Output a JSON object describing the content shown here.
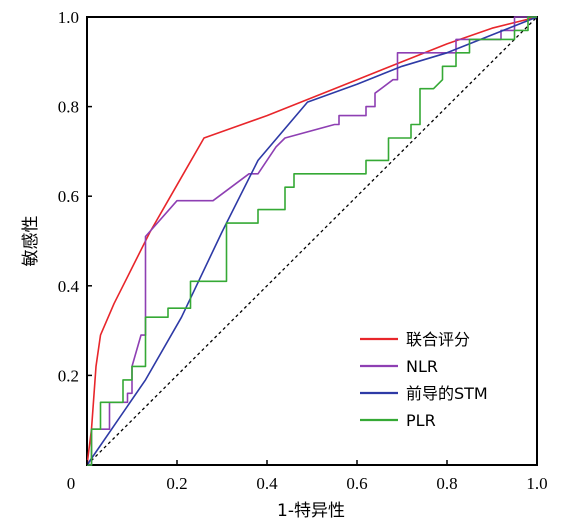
{
  "chart_data": {
    "type": "line",
    "title": "",
    "xlabel": "1-特异性",
    "ylabel": "敏感性",
    "xlim": [
      0,
      1
    ],
    "ylim": [
      0,
      1
    ],
    "x_ticks": [
      "0",
      "0.2",
      "0.4",
      "0.6",
      "0.8",
      "1.0"
    ],
    "y_ticks": [
      "0.2",
      "0.4",
      "0.6",
      "0.8",
      "1.0"
    ],
    "grid": false,
    "legend_position": "bottom-right",
    "reference_line": {
      "style": "dashed",
      "color": "#000000",
      "points": [
        [
          0,
          0
        ],
        [
          1,
          1
        ]
      ]
    },
    "series": [
      {
        "name": "联合评分",
        "color": "#e8262b",
        "points": [
          [
            0,
            0
          ],
          [
            0.01,
            0.08
          ],
          [
            0.02,
            0.22
          ],
          [
            0.03,
            0.29
          ],
          [
            0.06,
            0.36
          ],
          [
            0.1,
            0.44
          ],
          [
            0.14,
            0.52
          ],
          [
            0.18,
            0.59
          ],
          [
            0.22,
            0.66
          ],
          [
            0.26,
            0.73
          ],
          [
            0.4,
            0.78
          ],
          [
            0.55,
            0.84
          ],
          [
            0.7,
            0.9
          ],
          [
            0.8,
            0.94
          ],
          [
            0.9,
            0.975
          ],
          [
            1,
            1
          ]
        ]
      },
      {
        "name": "NLR",
        "color": "#8e3fb3",
        "points": [
          [
            0,
            0
          ],
          [
            0.01,
            0
          ],
          [
            0.01,
            0.08
          ],
          [
            0.05,
            0.08
          ],
          [
            0.05,
            0.14
          ],
          [
            0.09,
            0.14
          ],
          [
            0.09,
            0.16
          ],
          [
            0.1,
            0.16
          ],
          [
            0.1,
            0.22
          ],
          [
            0.12,
            0.29
          ],
          [
            0.13,
            0.29
          ],
          [
            0.13,
            0.51
          ],
          [
            0.2,
            0.59
          ],
          [
            0.28,
            0.59
          ],
          [
            0.36,
            0.65
          ],
          [
            0.38,
            0.65
          ],
          [
            0.42,
            0.71
          ],
          [
            0.44,
            0.73
          ],
          [
            0.55,
            0.76
          ],
          [
            0.56,
            0.76
          ],
          [
            0.56,
            0.78
          ],
          [
            0.62,
            0.78
          ],
          [
            0.62,
            0.8
          ],
          [
            0.64,
            0.8
          ],
          [
            0.64,
            0.83
          ],
          [
            0.68,
            0.86
          ],
          [
            0.69,
            0.86
          ],
          [
            0.69,
            0.92
          ],
          [
            0.82,
            0.92
          ],
          [
            0.82,
            0.95
          ],
          [
            0.92,
            0.95
          ],
          [
            0.92,
            0.97
          ],
          [
            0.95,
            0.97
          ],
          [
            0.95,
            1
          ],
          [
            1,
            1
          ]
        ]
      },
      {
        "name": "前导的STM",
        "color": "#2e3aa6",
        "points": [
          [
            0,
            0
          ],
          [
            0.13,
            0.19
          ],
          [
            0.21,
            0.33
          ],
          [
            0.3,
            0.52
          ],
          [
            0.38,
            0.68
          ],
          [
            0.49,
            0.81
          ],
          [
            0.6,
            0.85
          ],
          [
            0.7,
            0.89
          ],
          [
            0.8,
            0.92
          ],
          [
            0.9,
            0.96
          ],
          [
            1,
            1
          ]
        ]
      },
      {
        "name": "PLR",
        "color": "#35a935",
        "points": [
          [
            0,
            0
          ],
          [
            0.01,
            0
          ],
          [
            0.01,
            0.08
          ],
          [
            0.03,
            0.08
          ],
          [
            0.03,
            0.14
          ],
          [
            0.08,
            0.14
          ],
          [
            0.08,
            0.19
          ],
          [
            0.1,
            0.19
          ],
          [
            0.1,
            0.22
          ],
          [
            0.13,
            0.22
          ],
          [
            0.13,
            0.33
          ],
          [
            0.18,
            0.33
          ],
          [
            0.18,
            0.35
          ],
          [
            0.23,
            0.35
          ],
          [
            0.23,
            0.41
          ],
          [
            0.31,
            0.41
          ],
          [
            0.31,
            0.54
          ],
          [
            0.38,
            0.54
          ],
          [
            0.38,
            0.57
          ],
          [
            0.44,
            0.57
          ],
          [
            0.44,
            0.62
          ],
          [
            0.46,
            0.62
          ],
          [
            0.46,
            0.65
          ],
          [
            0.62,
            0.65
          ],
          [
            0.62,
            0.68
          ],
          [
            0.67,
            0.68
          ],
          [
            0.67,
            0.73
          ],
          [
            0.72,
            0.73
          ],
          [
            0.72,
            0.76
          ],
          [
            0.74,
            0.76
          ],
          [
            0.74,
            0.84
          ],
          [
            0.77,
            0.84
          ],
          [
            0.79,
            0.86
          ],
          [
            0.79,
            0.89
          ],
          [
            0.82,
            0.89
          ],
          [
            0.82,
            0.92
          ],
          [
            0.85,
            0.92
          ],
          [
            0.85,
            0.95
          ],
          [
            0.95,
            0.95
          ],
          [
            0.95,
            0.97
          ],
          [
            0.98,
            0.97
          ],
          [
            0.98,
            1
          ],
          [
            1,
            1
          ]
        ]
      }
    ]
  }
}
